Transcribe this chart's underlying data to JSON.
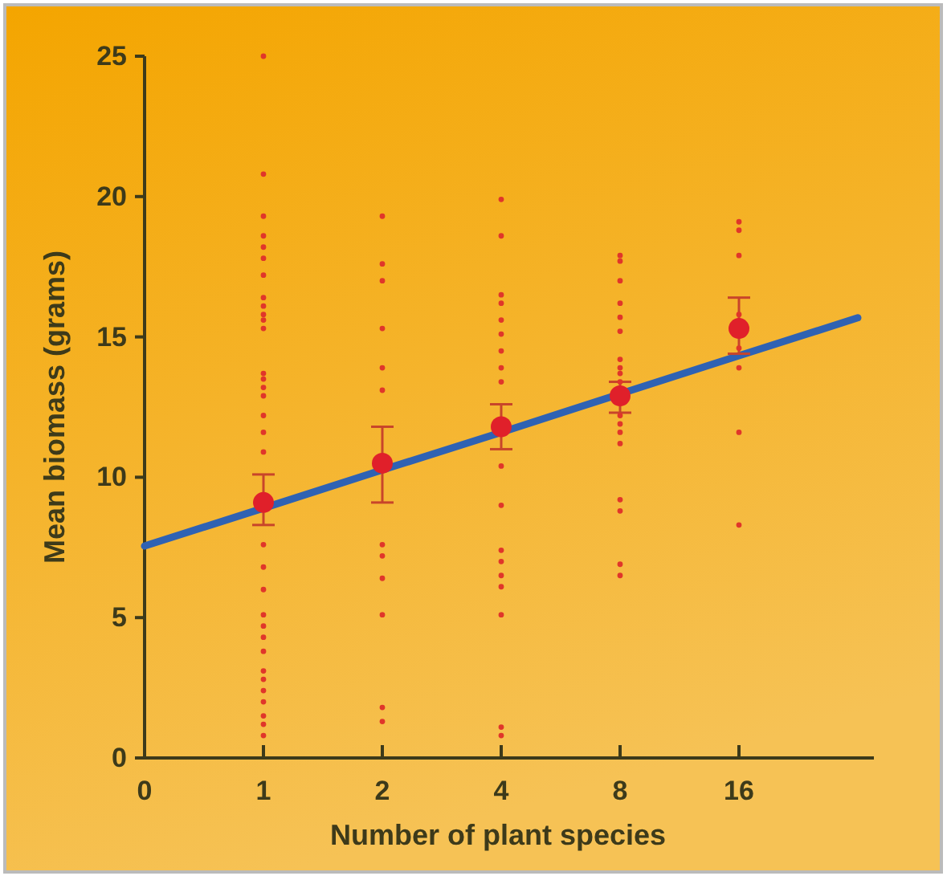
{
  "chart_data": {
    "type": "scatter",
    "xlabel": "Number of plant species",
    "ylabel": "Mean biomass (grams)",
    "categories": [
      "0",
      "1",
      "2",
      "4",
      "8",
      "16",
      null
    ],
    "ylim": [
      0,
      25
    ],
    "yticks": [
      0,
      5,
      10,
      15,
      20,
      25
    ],
    "grid": false,
    "series": [
      {
        "marker": "circle",
        "color": "#e0362a",
        "x": [
          "1",
          "1",
          "1",
          "1",
          "1",
          "1",
          "1",
          "1",
          "1",
          "1",
          "1",
          "1",
          "1",
          "1",
          "1",
          "1",
          "1",
          "1",
          "1",
          "1",
          "1",
          "1",
          "1",
          "1",
          "1",
          "1",
          "1",
          "1",
          "1",
          "1",
          "1",
          "1",
          "1"
        ],
        "values": [
          25.0,
          20.8,
          19.3,
          18.6,
          18.2,
          17.8,
          17.2,
          16.4,
          16.1,
          15.8,
          15.6,
          15.3,
          13.7,
          13.5,
          13.2,
          12.9,
          12.2,
          11.6,
          10.9,
          7.6,
          6.8,
          6.0,
          5.1,
          4.7,
          4.3,
          3.8,
          3.1,
          2.8,
          2.4,
          2.0,
          1.5,
          1.2,
          0.8
        ]
      },
      {
        "marker": "circle",
        "color": "#e0362a",
        "x": [
          "2",
          "2",
          "2",
          "2",
          "2",
          "2",
          "2",
          "2",
          "2",
          "2",
          "2",
          "2"
        ],
        "values": [
          19.3,
          17.6,
          17.0,
          15.3,
          13.9,
          13.1,
          7.6,
          7.2,
          6.4,
          5.1,
          1.8,
          1.3
        ]
      },
      {
        "marker": "circle",
        "color": "#e0362a",
        "x": [
          "4",
          "4",
          "4",
          "4",
          "4",
          "4",
          "4",
          "4",
          "4",
          "4",
          "4",
          "4",
          "4",
          "4",
          "4",
          "4",
          "4",
          "4"
        ],
        "values": [
          19.9,
          18.6,
          16.5,
          16.2,
          15.6,
          15.1,
          14.5,
          13.9,
          13.4,
          10.4,
          9.0,
          7.4,
          7.0,
          6.5,
          6.1,
          5.1,
          1.1,
          0.8
        ]
      },
      {
        "marker": "circle",
        "color": "#e0362a",
        "x": [
          "8",
          "8",
          "8",
          "8",
          "8",
          "8",
          "8",
          "8",
          "8",
          "8",
          "8",
          "8",
          "8",
          "8",
          "8",
          "8",
          "8",
          "8"
        ],
        "values": [
          17.9,
          17.7,
          17.0,
          16.2,
          15.7,
          15.2,
          14.2,
          13.9,
          13.7,
          13.4,
          12.2,
          11.9,
          11.6,
          11.2,
          9.2,
          8.8,
          6.9,
          6.5
        ]
      },
      {
        "marker": "circle",
        "color": "#e0362a",
        "x": [
          "16",
          "16",
          "16",
          "16",
          "16",
          "16",
          "16",
          "16"
        ],
        "values": [
          19.1,
          18.8,
          17.9,
          15.8,
          14.6,
          13.9,
          11.6,
          8.3
        ]
      },
      {
        "type": "line",
        "color": "#2f62b3",
        "values": [
          7.55,
          8.9,
          10.26,
          11.6,
          12.97,
          14.33,
          15.68
        ]
      },
      {
        "marker": "circle",
        "color": "#e0202a",
        "x": [
          "1",
          "2",
          "4",
          "8",
          "16"
        ],
        "values": [
          9.1,
          10.5,
          11.8,
          12.9,
          15.3
        ],
        "errors": [
          [
            8.3,
            10.1
          ],
          [
            9.1,
            11.8
          ],
          [
            11.0,
            12.6
          ],
          [
            12.3,
            13.4
          ],
          [
            14.4,
            16.4
          ]
        ]
      }
    ]
  }
}
